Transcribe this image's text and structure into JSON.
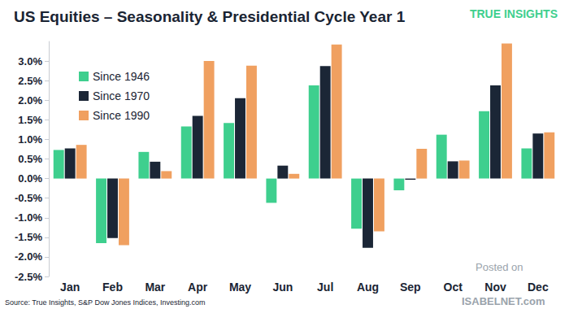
{
  "chart_data": {
    "type": "bar",
    "title": "US Equities – Seasonality & Presidential Cycle Year 1",
    "categories": [
      "Jan",
      "Feb",
      "Mar",
      "Apr",
      "May",
      "Jun",
      "Jul",
      "Aug",
      "Sep",
      "Oct",
      "Nov",
      "Dec"
    ],
    "series": [
      {
        "name": "Since 1946",
        "color": "#3ecf8e",
        "values": [
          0.73,
          -1.65,
          0.68,
          1.33,
          1.42,
          -0.62,
          2.38,
          -1.28,
          -0.3,
          1.12,
          1.72,
          0.77
        ]
      },
      {
        "name": "Since 1970",
        "color": "#1b2636",
        "values": [
          0.77,
          -1.52,
          0.43,
          1.6,
          2.05,
          0.33,
          2.87,
          -1.77,
          -0.03,
          0.44,
          2.38,
          1.15
        ]
      },
      {
        "name": "Since 1990",
        "color": "#f0a060",
        "values": [
          0.86,
          -1.7,
          0.19,
          3.0,
          2.88,
          0.12,
          3.42,
          -1.35,
          0.76,
          0.46,
          3.45,
          1.18
        ]
      }
    ],
    "ylim": [
      -2.5,
      3.5
    ],
    "yticks": [
      {
        "value": -2.5,
        "label": "-2.5%"
      },
      {
        "value": -2.0,
        "label": "-2.0%"
      },
      {
        "value": -1.5,
        "label": "-1.5%"
      },
      {
        "value": -1.0,
        "label": "-1.0%"
      },
      {
        "value": -0.5,
        "label": "-0.5%"
      },
      {
        "value": 0,
        "label": "0.0%"
      },
      {
        "value": 0.5,
        "label": "0.5%"
      },
      {
        "value": 1.0,
        "label": "1.0%"
      },
      {
        "value": 1.5,
        "label": "1.5%"
      },
      {
        "value": 2.0,
        "label": "2.0%"
      },
      {
        "value": 2.5,
        "label": "2.5%"
      },
      {
        "value": 3.0,
        "label": "3.0%"
      }
    ],
    "grid": false,
    "legend": "upper left",
    "source": "Source: True Insights, S&P Dow Jones Indices, Investing.com",
    "annotations": [
      "TRUE INSIGHTS",
      "Posted on",
      "ISABELNET.com"
    ]
  }
}
